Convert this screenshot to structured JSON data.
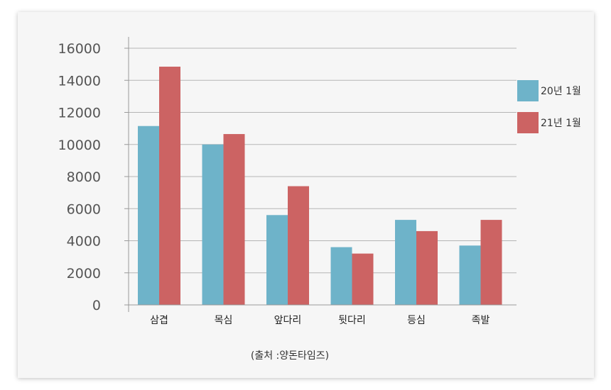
{
  "chart_data": {
    "type": "bar",
    "categories": [
      "삼겹",
      "목심",
      "앞다리",
      "뒷다리",
      "등심",
      "족발"
    ],
    "series": [
      {
        "name": "20년 1월",
        "color": "#6eb3c9",
        "values": [
          11150,
          10000,
          5600,
          3600,
          5300,
          3700
        ]
      },
      {
        "name": "21년 1월",
        "color": "#cc6363",
        "values": [
          14850,
          10650,
          7400,
          3200,
          4600,
          5300
        ]
      }
    ],
    "ylim": [
      0,
      16000
    ],
    "yticks": [
      0,
      2000,
      4000,
      6000,
      8000,
      10000,
      12000,
      14000,
      16000
    ],
    "grid": true,
    "legend": "right",
    "source": "(출처 :양돈타임즈)"
  }
}
